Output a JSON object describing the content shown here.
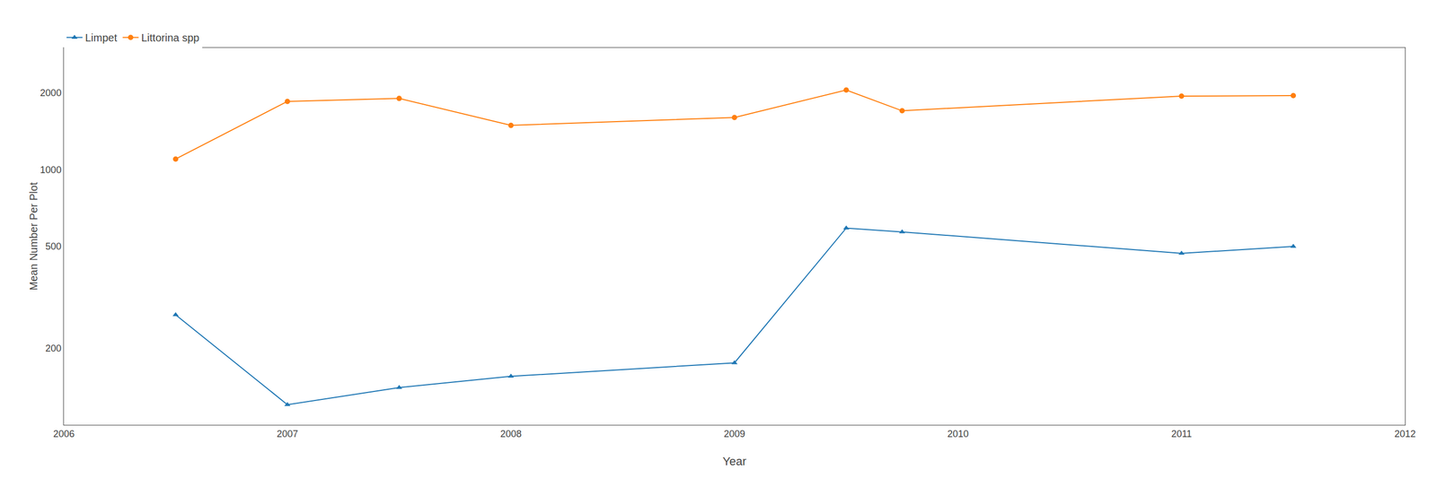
{
  "chart_data": {
    "type": "line",
    "x": [
      2006.5,
      2007.0,
      2007.5,
      2008.0,
      2009.0,
      2009.5,
      2009.75,
      2011.0,
      2011.5
    ],
    "series": [
      {
        "name": "Limpet",
        "marker": "triangle",
        "values": [
          270,
          120,
          140,
          155,
          175,
          590,
          570,
          470,
          500
        ]
      },
      {
        "name": "Littorina spp",
        "marker": "circle",
        "values": [
          1100,
          1850,
          1900,
          1490,
          1600,
          2050,
          1700,
          1940,
          1950
        ]
      }
    ],
    "xlabel": "Year",
    "ylabel": "Mean Number Per Plot",
    "xlim": [
      2006,
      2012
    ],
    "xticks": [
      2006,
      2007,
      2008,
      2009,
      2010,
      2011,
      2012
    ],
    "ylim": [
      100,
      3000
    ],
    "yticks": [
      200,
      500,
      1000,
      2000
    ],
    "log": "y",
    "grid": false,
    "legend": "top left"
  }
}
